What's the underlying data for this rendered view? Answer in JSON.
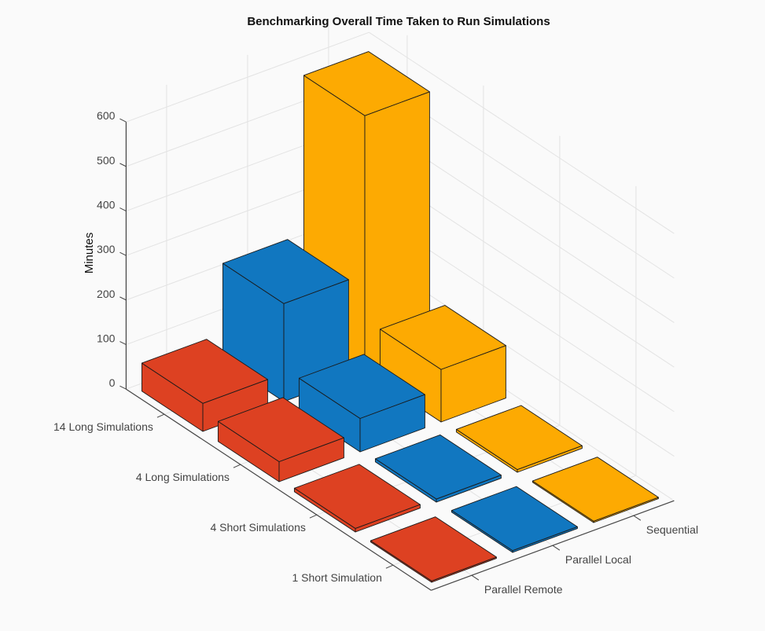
{
  "chart_data": {
    "type": "bar3d",
    "title": "Benchmarking Overall Time Taken to Run Simulations",
    "zlabel": "Minutes",
    "zlim": [
      0,
      650
    ],
    "zticks": [
      0,
      100,
      200,
      300,
      400,
      500,
      600
    ],
    "grid": true,
    "row_categories": [
      "14 Long Simulations",
      "4 Long Simulations",
      "4 Short Simulations",
      "1 Short Simulation"
    ],
    "column_categories": [
      "Parallel Remote",
      "Parallel Local",
      "Sequential"
    ],
    "series": [
      {
        "values": [
          63,
          45,
          8,
          3
        ],
        "color": "#DD4122"
      },
      {
        "values": [
          220,
          75,
          7,
          4
        ],
        "color": "#1177C0"
      },
      {
        "values": [
          575,
          118,
          6,
          3
        ],
        "color": "#FDAA02"
      }
    ]
  }
}
